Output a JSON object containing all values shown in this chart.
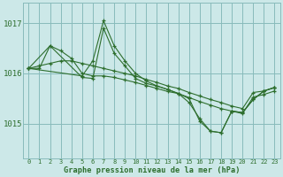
{
  "title": "Graphe pression niveau de la mer (hPa)",
  "background_color": "#cce8e8",
  "grid_color": "#88bbbb",
  "line_color": "#2d6e2d",
  "xlim": [
    -0.5,
    23.5
  ],
  "ylim": [
    1014.3,
    1017.4
  ],
  "yticks": [
    1015,
    1016,
    1017
  ],
  "xticks": [
    0,
    1,
    2,
    3,
    4,
    5,
    6,
    7,
    8,
    9,
    10,
    11,
    12,
    13,
    14,
    15,
    16,
    17,
    18,
    19,
    20,
    21,
    22,
    23
  ],
  "series": [
    {
      "x": [
        0,
        1,
        2,
        3,
        4,
        5,
        6,
        7,
        8,
        9,
        10,
        11,
        12,
        13,
        14,
        15,
        16,
        17,
        18,
        19,
        20,
        21,
        22,
        23
      ],
      "y": [
        1016.1,
        1016.15,
        1016.2,
        1016.25,
        1016.25,
        1016.2,
        1016.15,
        1016.1,
        1016.05,
        1016.0,
        1015.95,
        1015.88,
        1015.82,
        1015.75,
        1015.7,
        1015.62,
        1015.55,
        1015.48,
        1015.42,
        1015.35,
        1015.3,
        1015.62,
        1015.65,
        1015.72
      ]
    },
    {
      "x": [
        0,
        1,
        2,
        3,
        4,
        5,
        6,
        7,
        8,
        9,
        10,
        11,
        12,
        13,
        14,
        15,
        16,
        17,
        18,
        19,
        20,
        21,
        22,
        23
      ],
      "y": [
        1016.1,
        1016.1,
        1016.55,
        1016.45,
        1016.3,
        1016.0,
        1015.95,
        1015.95,
        1015.92,
        1015.87,
        1015.82,
        1015.76,
        1015.7,
        1015.64,
        1015.6,
        1015.52,
        1015.44,
        1015.37,
        1015.3,
        1015.25,
        1015.2,
        1015.53,
        1015.58,
        1015.65
      ]
    },
    {
      "x": [
        0,
        5,
        6,
        7,
        8,
        9,
        10,
        11,
        12,
        13,
        14,
        15,
        16,
        17,
        18,
        19,
        20,
        21,
        22,
        23
      ],
      "y": [
        1016.1,
        1015.95,
        1016.25,
        1017.05,
        1016.55,
        1016.25,
        1016.0,
        1015.85,
        1015.75,
        1015.68,
        1015.6,
        1015.5,
        1015.05,
        1014.85,
        1014.82,
        1015.25,
        1015.22,
        1015.48,
        1015.65,
        1015.72
      ]
    },
    {
      "x": [
        0,
        2,
        5,
        6,
        7,
        8,
        9,
        10,
        11,
        12,
        13,
        14,
        15,
        16,
        17,
        18,
        19,
        20,
        21,
        22,
        23
      ],
      "y": [
        1016.1,
        1016.55,
        1015.92,
        1015.9,
        1016.9,
        1016.4,
        1016.15,
        1015.9,
        1015.8,
        1015.75,
        1015.68,
        1015.6,
        1015.42,
        1015.1,
        1014.85,
        1014.82,
        1015.25,
        1015.22,
        1015.48,
        1015.65,
        1015.72
      ]
    }
  ]
}
